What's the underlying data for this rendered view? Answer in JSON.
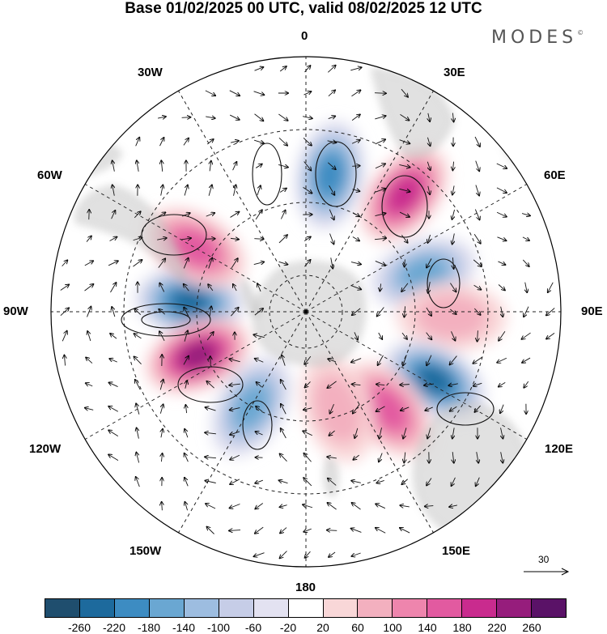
{
  "title": "Base 01/02/2025 00 UTC, valid 08/02/2025 12 UTC",
  "logo": "MODES",
  "logo_mark": "©",
  "longitude_labels": {
    "lon_0": "0",
    "lon_30e": "30E",
    "lon_60e": "60E",
    "lon_90e": "90E",
    "lon_120e": "120E",
    "lon_150e": "150E",
    "lon_180": "180",
    "lon_150w": "150W",
    "lon_120w": "120W",
    "lon_90w": "90W",
    "lon_60w": "60W",
    "lon_30w": "30W"
  },
  "reference_vector": "30",
  "colorbar": {
    "ticks": [
      "-260",
      "-220",
      "-180",
      "-140",
      "-100",
      "-60",
      "-20",
      "20",
      "60",
      "100",
      "140",
      "180",
      "220",
      "260"
    ],
    "colors": [
      "#1f4e6e",
      "#1d6a9d",
      "#3d8cc2",
      "#6aa7d2",
      "#9dbde0",
      "#c6cde7",
      "#e3e2f1",
      "#ffffff",
      "#f9d7d8",
      "#f3b0bf",
      "#ee85ad",
      "#e25aa0",
      "#c92b8e",
      "#961d7c",
      "#5a1267"
    ]
  },
  "anomaly_centers": [
    {
      "lon": -85,
      "lat": -58,
      "value": -220
    },
    {
      "lon": -60,
      "lat": -55,
      "value": 140
    },
    {
      "lon": -112,
      "lat": -58,
      "value": 220
    },
    {
      "lon": -150,
      "lat": -60,
      "value": -140
    },
    {
      "lon": 10,
      "lat": -52,
      "value": -180
    },
    {
      "lon": 40,
      "lat": -48,
      "value": 180
    },
    {
      "lon": 72,
      "lat": -56,
      "value": -140
    },
    {
      "lon": 92,
      "lat": -50,
      "value": 60
    },
    {
      "lon": 118,
      "lat": -50,
      "value": -220
    },
    {
      "lon": 140,
      "lat": -55,
      "value": 140
    },
    {
      "lon": 162,
      "lat": -62,
      "value": 60
    }
  ]
}
